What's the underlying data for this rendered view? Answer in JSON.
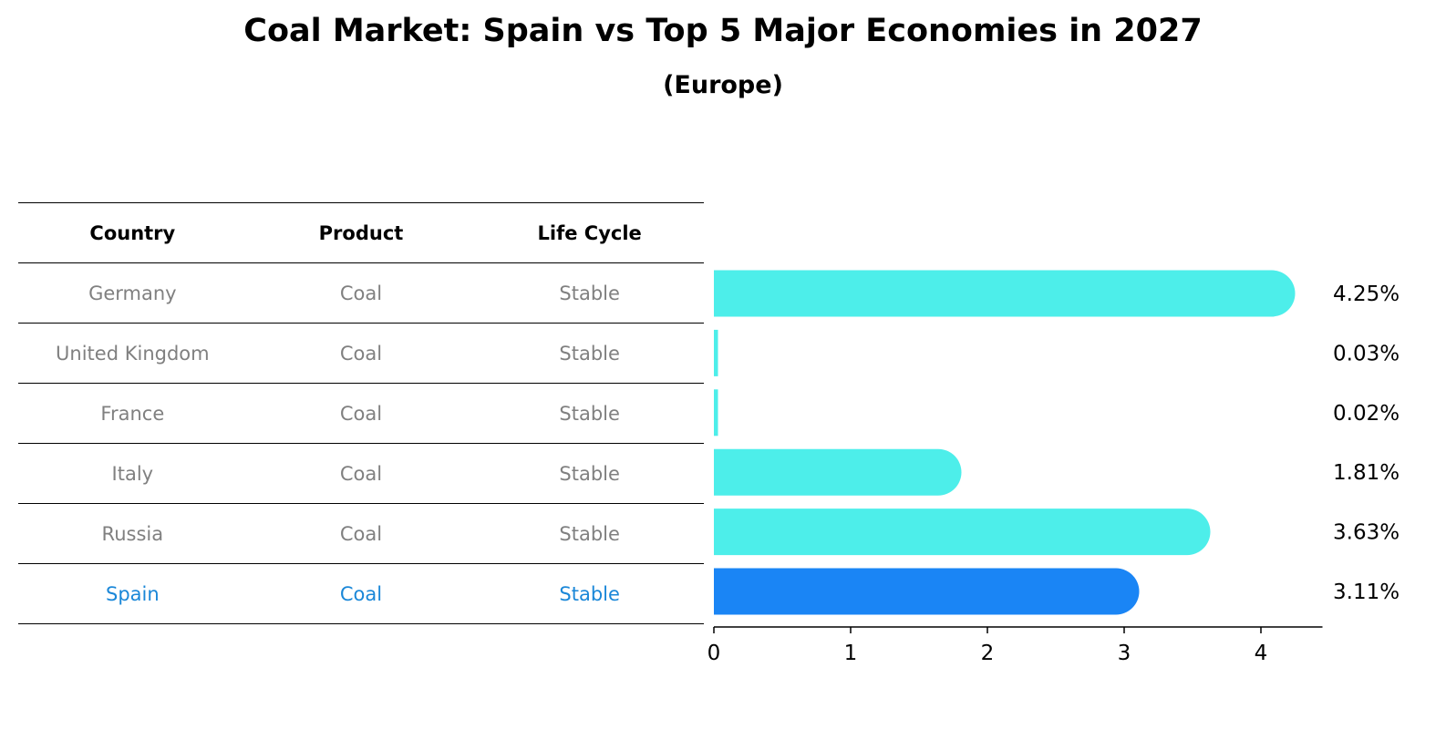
{
  "title": "Coal Market: Spain vs Top 5 Major Economies in 2027",
  "subtitle": "(Europe)",
  "table": {
    "headers": [
      "Country",
      "Product",
      "Life Cycle"
    ],
    "rows": [
      [
        "Germany",
        "Coal",
        "Stable"
      ],
      [
        "United Kingdom",
        "Coal",
        "Stable"
      ],
      [
        "France",
        "Coal",
        "Stable"
      ],
      [
        "Italy",
        "Coal",
        "Stable"
      ],
      [
        "Russia",
        "Coal",
        "Stable"
      ],
      [
        "Spain",
        "Coal",
        "Stable"
      ]
    ],
    "highlight_row": "Spain"
  },
  "chart_data": {
    "type": "bar",
    "orientation": "horizontal",
    "categories": [
      "Germany",
      "United Kingdom",
      "France",
      "Italy",
      "Russia",
      "Spain"
    ],
    "values": [
      4.25,
      0.03,
      0.02,
      1.81,
      3.63,
      3.11
    ],
    "value_labels": [
      "4.25%",
      "0.03%",
      "0.02%",
      "1.81%",
      "3.63%",
      "3.11%"
    ],
    "xticks": [
      0,
      1,
      2,
      3,
      4
    ],
    "xlim": [
      0,
      4.45
    ],
    "colors": {
      "default": "#4deeea",
      "highlight": "#1a85f5"
    },
    "highlight_category": "Spain",
    "grid": false
  }
}
